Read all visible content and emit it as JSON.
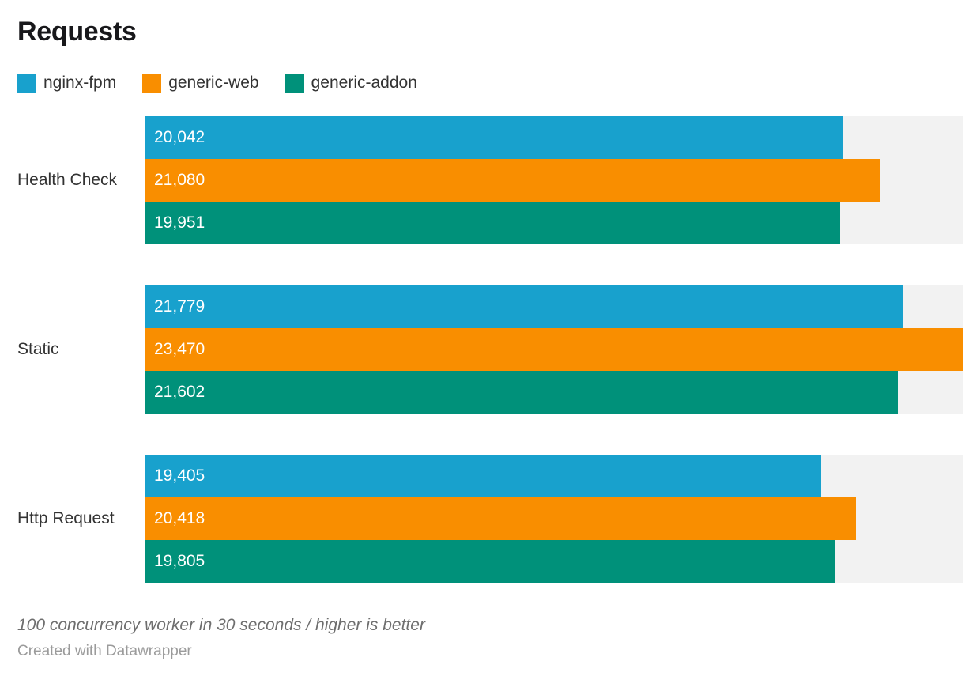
{
  "header": {
    "title": "Requests"
  },
  "chart_data": {
    "type": "bar",
    "orientation": "horizontal",
    "title": "Requests",
    "categories": [
      "Health Check",
      "Static",
      "Http Request"
    ],
    "series": [
      {
        "name": "nginx-fpm",
        "color": "#18a1cd",
        "values": [
          20042,
          21779,
          19405
        ],
        "labels": [
          "20,042",
          "21,779",
          "19,405"
        ]
      },
      {
        "name": "generic-web",
        "color": "#f98e00",
        "values": [
          21080,
          23470,
          20418
        ],
        "labels": [
          "21,080",
          "23,470",
          "20,418"
        ]
      },
      {
        "name": "generic-addon",
        "color": "#00917a",
        "values": [
          19951,
          21602,
          19805
        ],
        "labels": [
          "19,951",
          "21,602",
          "19,805"
        ]
      }
    ],
    "xlim": [
      0,
      23470
    ],
    "grid": false,
    "legend_position": "top",
    "value_labels_inside_bars": true,
    "track_color": "#f2f2f2"
  },
  "footer": {
    "note": "100 concurrency worker in 30 seconds / higher is better",
    "credit": "Created with Datawrapper"
  }
}
